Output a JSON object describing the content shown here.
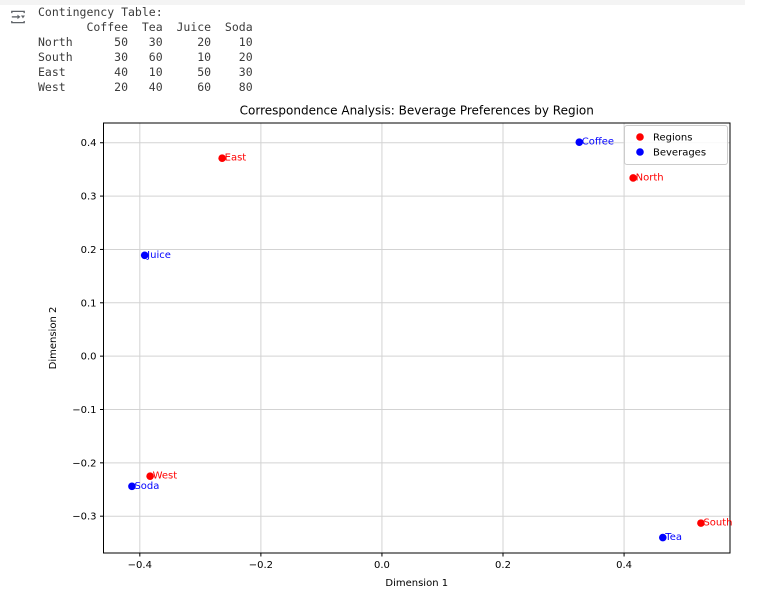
{
  "output": {
    "icon": "output-options-icon",
    "console_lines": [
      "Contingency Table:",
      "       Coffee  Tea  Juice  Soda",
      "North      50   30     20    10",
      "South      30   60     10    20",
      "East       40   10     50    30",
      "West       20   40     60    80"
    ]
  },
  "contingency_table": {
    "title": "Contingency Table:",
    "columns": [
      "Coffee",
      "Tea",
      "Juice",
      "Soda"
    ],
    "rows": [
      {
        "label": "North",
        "values": [
          50,
          30,
          20,
          10
        ]
      },
      {
        "label": "South",
        "values": [
          30,
          60,
          10,
          20
        ]
      },
      {
        "label": "East",
        "values": [
          40,
          10,
          50,
          30
        ]
      },
      {
        "label": "West",
        "values": [
          20,
          40,
          60,
          80
        ]
      }
    ]
  },
  "chart_data": {
    "type": "scatter",
    "title": "Correspondence Analysis: Beverage Preferences by Region",
    "xlabel": "Dimension 1",
    "ylabel": "Dimension 2",
    "xlim": [
      -0.46,
      0.575
    ],
    "ylim": [
      -0.369,
      0.437
    ],
    "xticks": [
      -0.4,
      -0.2,
      0.0,
      0.2,
      0.4
    ],
    "xtick_labels": [
      "−0.4",
      "−0.2",
      "0.0",
      "0.2",
      "0.4"
    ],
    "yticks": [
      0.4,
      0.3,
      0.2,
      0.1,
      0.0,
      -0.1,
      -0.2,
      -0.3
    ],
    "ytick_labels": [
      "0.4",
      "0.3",
      "0.2",
      "0.1",
      "0.0",
      "−0.1",
      "−0.2",
      "−0.3"
    ],
    "grid": true,
    "legend_position": "upper right",
    "colors": {
      "grid": "#d3d3d3",
      "spine": "#000000",
      "legend_border": "#cccccc"
    },
    "series": [
      {
        "name": "Regions",
        "color": "#ff0000",
        "points": [
          {
            "label": "North",
            "x": 0.415,
            "y": 0.334
          },
          {
            "label": "South",
            "x": 0.527,
            "y": -0.313
          },
          {
            "label": "East",
            "x": -0.264,
            "y": 0.371
          },
          {
            "label": "West",
            "x": -0.383,
            "y": -0.225
          }
        ]
      },
      {
        "name": "Beverages",
        "color": "#0000ff",
        "points": [
          {
            "label": "Coffee",
            "x": 0.326,
            "y": 0.401
          },
          {
            "label": "Tea",
            "x": 0.464,
            "y": -0.34
          },
          {
            "label": "Juice",
            "x": -0.392,
            "y": 0.189
          },
          {
            "label": "Soda",
            "x": -0.413,
            "y": -0.244
          }
        ]
      }
    ]
  }
}
